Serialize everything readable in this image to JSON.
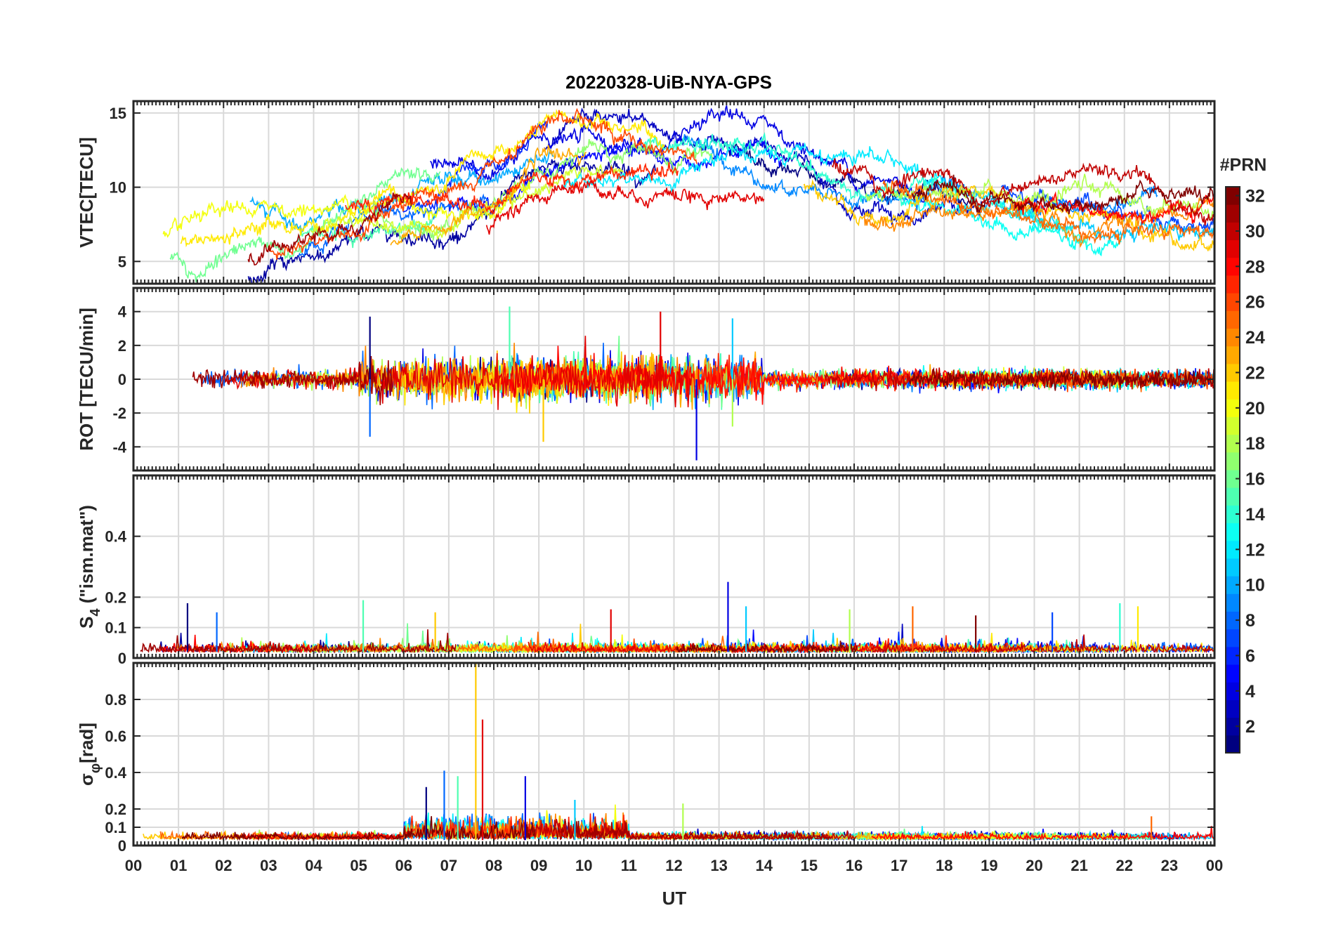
{
  "title": "20220328-UiB-NYA-GPS",
  "colorbar": {
    "label": "#PRN",
    "range": [
      1,
      32
    ],
    "ticks": [
      "2",
      "4",
      "6",
      "8",
      "10",
      "12",
      "14",
      "16",
      "18",
      "20",
      "22",
      "24",
      "26",
      "28",
      "30",
      "32"
    ],
    "colormap": "jet"
  },
  "xaxis": {
    "label": "UT",
    "range": [
      0,
      24
    ],
    "ticks": [
      "00",
      "01",
      "02",
      "03",
      "04",
      "05",
      "06",
      "07",
      "08",
      "09",
      "10",
      "11",
      "12",
      "13",
      "14",
      "15",
      "16",
      "17",
      "18",
      "19",
      "20",
      "21",
      "22",
      "23",
      "00"
    ]
  },
  "chart_data": [
    {
      "type": "line",
      "panel": "vtec",
      "ylabel": "VTEC[TECU]",
      "ylim": [
        3.5,
        15.8
      ],
      "yticks": [
        5,
        10,
        15
      ],
      "grid": true,
      "description_level": {
        "mean_by_hour": [
          7.0,
          6.8,
          6.2,
          6.5,
          7.2,
          7.8,
          8.5,
          8.8,
          9.5,
          11.5,
          12.0,
          11.8,
          11.5,
          11.8,
          11.5,
          10.5,
          9.5,
          9.2,
          9.0,
          8.5,
          8.2,
          7.8,
          8.0,
          8.5,
          8.0
        ]
      },
      "series_count": 32
    },
    {
      "type": "line",
      "panel": "rot",
      "ylabel": "ROT [TECU/min]",
      "ylim": [
        -5.4,
        5.4
      ],
      "yticks": [
        -4,
        -2,
        0,
        2,
        4
      ],
      "grid": true,
      "peaks": [
        {
          "x": 5.25,
          "y": 3.7
        },
        {
          "x": 5.25,
          "y": -3.4
        },
        {
          "x": 8.35,
          "y": 4.3
        },
        {
          "x": 9.1,
          "y": -3.7
        },
        {
          "x": 11.7,
          "y": 4.0
        },
        {
          "x": 12.5,
          "y": -4.8
        },
        {
          "x": 13.3,
          "y": 3.6
        },
        {
          "x": 13.3,
          "y": -2.8
        }
      ],
      "series_count": 32
    },
    {
      "type": "line",
      "panel": "s4",
      "ylabel": "S4 (\"ism.mat\")",
      "ylabel_main": "S",
      "ylabel_sub": "4",
      "ylabel_rest": " (\"ism.mat\")",
      "ylim": [
        0,
        0.6
      ],
      "yticks": [
        0,
        0.1,
        0.2,
        0.4
      ],
      "grid": true,
      "peaks": [
        {
          "x": 1.2,
          "y": 0.18
        },
        {
          "x": 1.85,
          "y": 0.15
        },
        {
          "x": 5.1,
          "y": 0.19
        },
        {
          "x": 6.7,
          "y": 0.15
        },
        {
          "x": 10.6,
          "y": 0.16
        },
        {
          "x": 13.2,
          "y": 0.25
        },
        {
          "x": 13.6,
          "y": 0.17
        },
        {
          "x": 15.9,
          "y": 0.16
        },
        {
          "x": 17.3,
          "y": 0.17
        },
        {
          "x": 18.7,
          "y": 0.14
        },
        {
          "x": 20.4,
          "y": 0.15
        },
        {
          "x": 21.9,
          "y": 0.18
        },
        {
          "x": 22.3,
          "y": 0.17
        }
      ],
      "series_count": 32
    },
    {
      "type": "line",
      "panel": "sigma_phi",
      "ylabel": "σφ[rad]",
      "ylabel_main": "σ",
      "ylabel_sub": "φ",
      "ylabel_rest": "[rad]",
      "ylim": [
        0,
        1.0
      ],
      "yticks": [
        0,
        0.1,
        0.2,
        0.4,
        0.6,
        0.8
      ],
      "grid": true,
      "peaks": [
        {
          "x": 6.5,
          "y": 0.32
        },
        {
          "x": 6.9,
          "y": 0.41
        },
        {
          "x": 7.2,
          "y": 0.38
        },
        {
          "x": 7.6,
          "y": 1.0
        },
        {
          "x": 7.75,
          "y": 0.69
        },
        {
          "x": 8.7,
          "y": 0.38
        },
        {
          "x": 9.8,
          "y": 0.25
        },
        {
          "x": 12.2,
          "y": 0.23
        },
        {
          "x": 22.6,
          "y": 0.16
        }
      ],
      "series_count": 32
    }
  ]
}
